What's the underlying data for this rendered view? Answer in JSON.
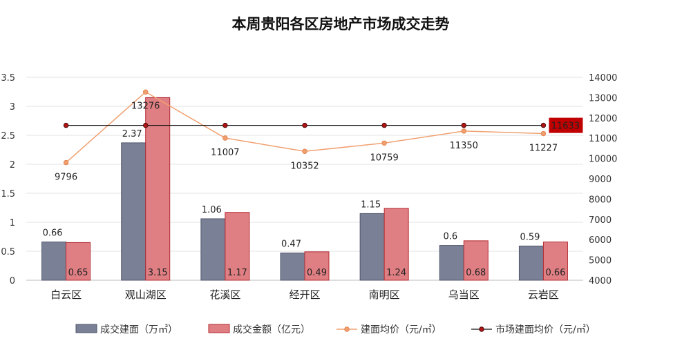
{
  "chart_data": {
    "type": "bar",
    "title": "本周贵阳各区房地产市场成交走势",
    "categories": [
      "白云区",
      "观山湖区",
      "花溪区",
      "经开区",
      "南明区",
      "乌当区",
      "云岩区"
    ],
    "y_left": {
      "ticks": [
        "0",
        "0.5",
        "1",
        "1.5",
        "2",
        "2.5",
        "3",
        "3.5"
      ],
      "range": [
        0,
        3.5
      ]
    },
    "y_right": {
      "ticks": [
        "4000",
        "5000",
        "6000",
        "7000",
        "8000",
        "9000",
        "10000",
        "11000",
        "12000",
        "13000",
        "14000"
      ],
      "range": [
        4000,
        14000
      ]
    },
    "series": [
      {
        "name": "成交建面（万㎡）",
        "kind": "bar",
        "axis": "left",
        "color": "#7a8196",
        "values": [
          0.66,
          2.37,
          1.06,
          0.47,
          1.15,
          0.6,
          0.59
        ],
        "labels": [
          "0.66",
          "2.37",
          "1.06",
          "0.47",
          "1.15",
          "0.6",
          "0.59"
        ]
      },
      {
        "name": "成交金额（亿元）",
        "kind": "bar",
        "axis": "left",
        "color": "#e07f83",
        "values": [
          0.65,
          3.15,
          1.17,
          0.49,
          1.24,
          0.68,
          0.66
        ],
        "labels": [
          "0.65",
          "3.15",
          "1.17",
          "0.49",
          "1.24",
          "0.68",
          "0.66"
        ]
      },
      {
        "name": "建面均价（元/㎡）",
        "kind": "line",
        "axis": "right",
        "color": "#f0a070",
        "values": [
          9796,
          13276,
          11007,
          10352,
          10759,
          11350,
          11227
        ],
        "labels": [
          "9796",
          "13276",
          "11007",
          "10352",
          "10759",
          "11350",
          "11227"
        ]
      },
      {
        "name": "市场建面均价（元/㎡）",
        "kind": "line",
        "axis": "right",
        "color": "#111111",
        "marker_color": "#b01515",
        "values": [
          11633,
          11633,
          11633,
          11633,
          11633,
          11633,
          11633
        ],
        "end_label": "11633",
        "end_label_bg": "#c00000"
      }
    ],
    "grid": "horizontal",
    "legend_position": "bottom"
  }
}
